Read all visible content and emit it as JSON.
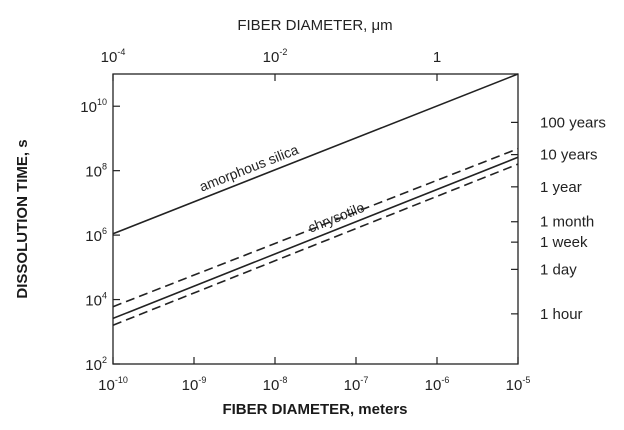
{
  "chart_data": {
    "type": "line",
    "xlabel": "FIBER DIAMETER, meters",
    "xlabel_top": "FIBER DIAMETER, μm",
    "ylabel": "DISSOLUTION TIME, s",
    "x_scale": "log",
    "y_scale": "log",
    "xlim": [
      1e-10,
      1e-05
    ],
    "ylim": [
      100,
      100000000000.0
    ],
    "grid": false,
    "x_ticks": [
      {
        "value": 1e-10,
        "base": "10",
        "exp": "-10"
      },
      {
        "value": 1e-09,
        "base": "10",
        "exp": "-9"
      },
      {
        "value": 1e-08,
        "base": "10",
        "exp": "-8"
      },
      {
        "value": 1e-07,
        "base": "10",
        "exp": "-7"
      },
      {
        "value": 1e-06,
        "base": "10",
        "exp": "-6"
      },
      {
        "value": 1e-05,
        "base": "10",
        "exp": "-5"
      }
    ],
    "x_top_ticks": [
      {
        "value": 1e-10,
        "base": "10",
        "exp": "-4"
      },
      {
        "value": 1e-08,
        "base": "10",
        "exp": "-2"
      },
      {
        "value": 1e-06,
        "base": "1",
        "exp": ""
      }
    ],
    "y_ticks": [
      {
        "value": 100,
        "base": "10",
        "exp": "2"
      },
      {
        "value": 10000,
        "base": "10",
        "exp": "4"
      },
      {
        "value": 1000000,
        "base": "10",
        "exp": "6"
      },
      {
        "value": 100000000,
        "base": "10",
        "exp": "8"
      },
      {
        "value": 10000000000,
        "base": "10",
        "exp": "10"
      }
    ],
    "right_ticks": [
      {
        "label": "100 years",
        "value": 3150000000.0
      },
      {
        "label": "10 years",
        "value": 315000000.0
      },
      {
        "label": "1 year",
        "value": 31500000.0
      },
      {
        "label": "1 month",
        "value": 2600000.0
      },
      {
        "label": "1 week",
        "value": 605000.0
      },
      {
        "label": "1 day",
        "value": 86400.0
      },
      {
        "label": "1 hour",
        "value": 3600
      }
    ],
    "series": [
      {
        "name": "amorphous silica",
        "dash": "solid",
        "x": [
          1e-10,
          1e-05
        ],
        "y": [
          1100000.0,
          100000000000.0
        ]
      },
      {
        "name": "chrysotile",
        "dash": "solid",
        "x": [
          1e-10,
          1e-05
        ],
        "y": [
          2600.0,
          260000000.0
        ]
      },
      {
        "dash": "dashed",
        "x": [
          1e-10,
          1e-05
        ],
        "y": [
          6000.0,
          480000000.0
        ]
      },
      {
        "dash": "dashed",
        "x": [
          1e-10,
          1e-05
        ],
        "y": [
          1600.0,
          160000000.0
        ]
      }
    ],
    "annotations": [
      {
        "text": "amorphous silica",
        "series": 0,
        "at_x": 5e-09
      },
      {
        "text": "chrysotile",
        "series": 1,
        "at_x": 6e-08
      }
    ]
  }
}
